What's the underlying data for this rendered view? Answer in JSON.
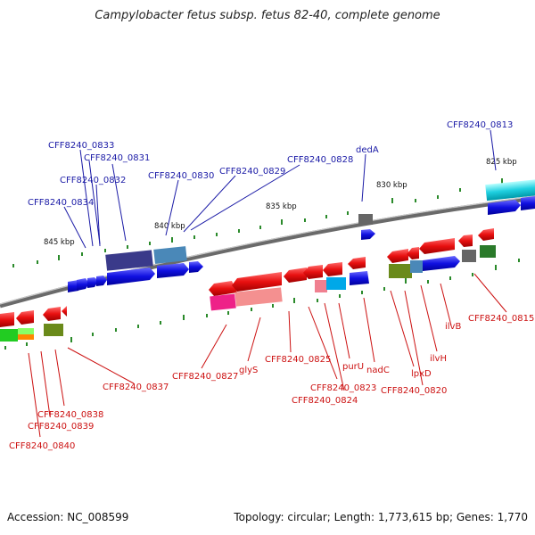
{
  "title": "Campylobacter fetus subsp. fetus 82-40, complete genome",
  "footer": {
    "accession": "Accession: NC_008599",
    "summary": "Topology: circular; Length: 1,773,615 bp; Genes: 1,770"
  },
  "scale_labels": [
    "845 kbp",
    "840 kbp",
    "835 kbp",
    "830 kbp",
    "825 kbp"
  ],
  "blue_labels": [
    "CFF8240_0833",
    "CFF8240_0831",
    "CFF8240_0832",
    "CFF8240_0834",
    "CFF8240_0830",
    "CFF8240_0829",
    "CFF8240_0828",
    "dedA",
    "CFF8240_0813"
  ],
  "red_labels": [
    "CFF8240_0837",
    "CFF8240_0838",
    "CFF8240_0839",
    "CFF8240_0840",
    "CFF8240_0827",
    "glyS",
    "CFF8240_0825",
    "CFF8240_0823",
    "CFF8240_0824",
    "purU",
    "nadC",
    "lpxD",
    "CFF8240_0820",
    "ilvH",
    "ilvB",
    "CFF8240_0815"
  ],
  "colors": {
    "forward_gene": "#1010e0",
    "reverse_gene": "#e81010",
    "backbone": "#888888",
    "tick": "#2a8a2a"
  }
}
